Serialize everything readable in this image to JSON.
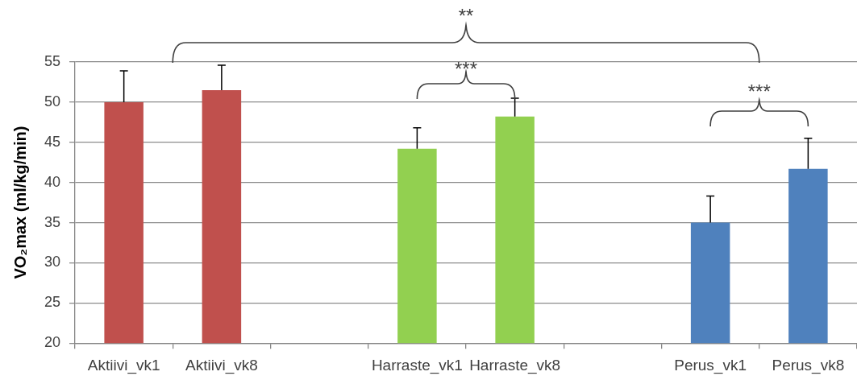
{
  "chart_data": {
    "type": "bar",
    "ylabel": "VO₂max (ml/kg/min)",
    "categories": [
      "Aktiivi_vk1",
      "Aktiivi_vk8",
      null,
      "Harraste_vk1",
      "Harraste_vk8",
      null,
      "Perus_vk1",
      "Perus_vk8"
    ],
    "values": [
      50,
      51.5,
      null,
      44.2,
      48.2,
      null,
      35,
      41.7
    ],
    "colors": [
      "#c0504d",
      "#c0504d",
      null,
      "#92d050",
      "#92d050",
      null,
      "#4f81bd",
      "#4f81bd"
    ],
    "errors": [
      [
        50,
        53.9
      ],
      [
        51.5,
        54.6
      ],
      null,
      [
        44.2,
        46.8
      ],
      [
        48.2,
        50.5
      ],
      null,
      [
        35,
        38.3
      ],
      [
        41.7,
        45.5
      ]
    ],
    "ylim": [
      20,
      55
    ],
    "yticks": [
      20,
      25,
      30,
      35,
      40,
      45,
      50,
      55
    ],
    "grid": "y",
    "annotations": [
      "**",
      "***",
      "***"
    ]
  }
}
